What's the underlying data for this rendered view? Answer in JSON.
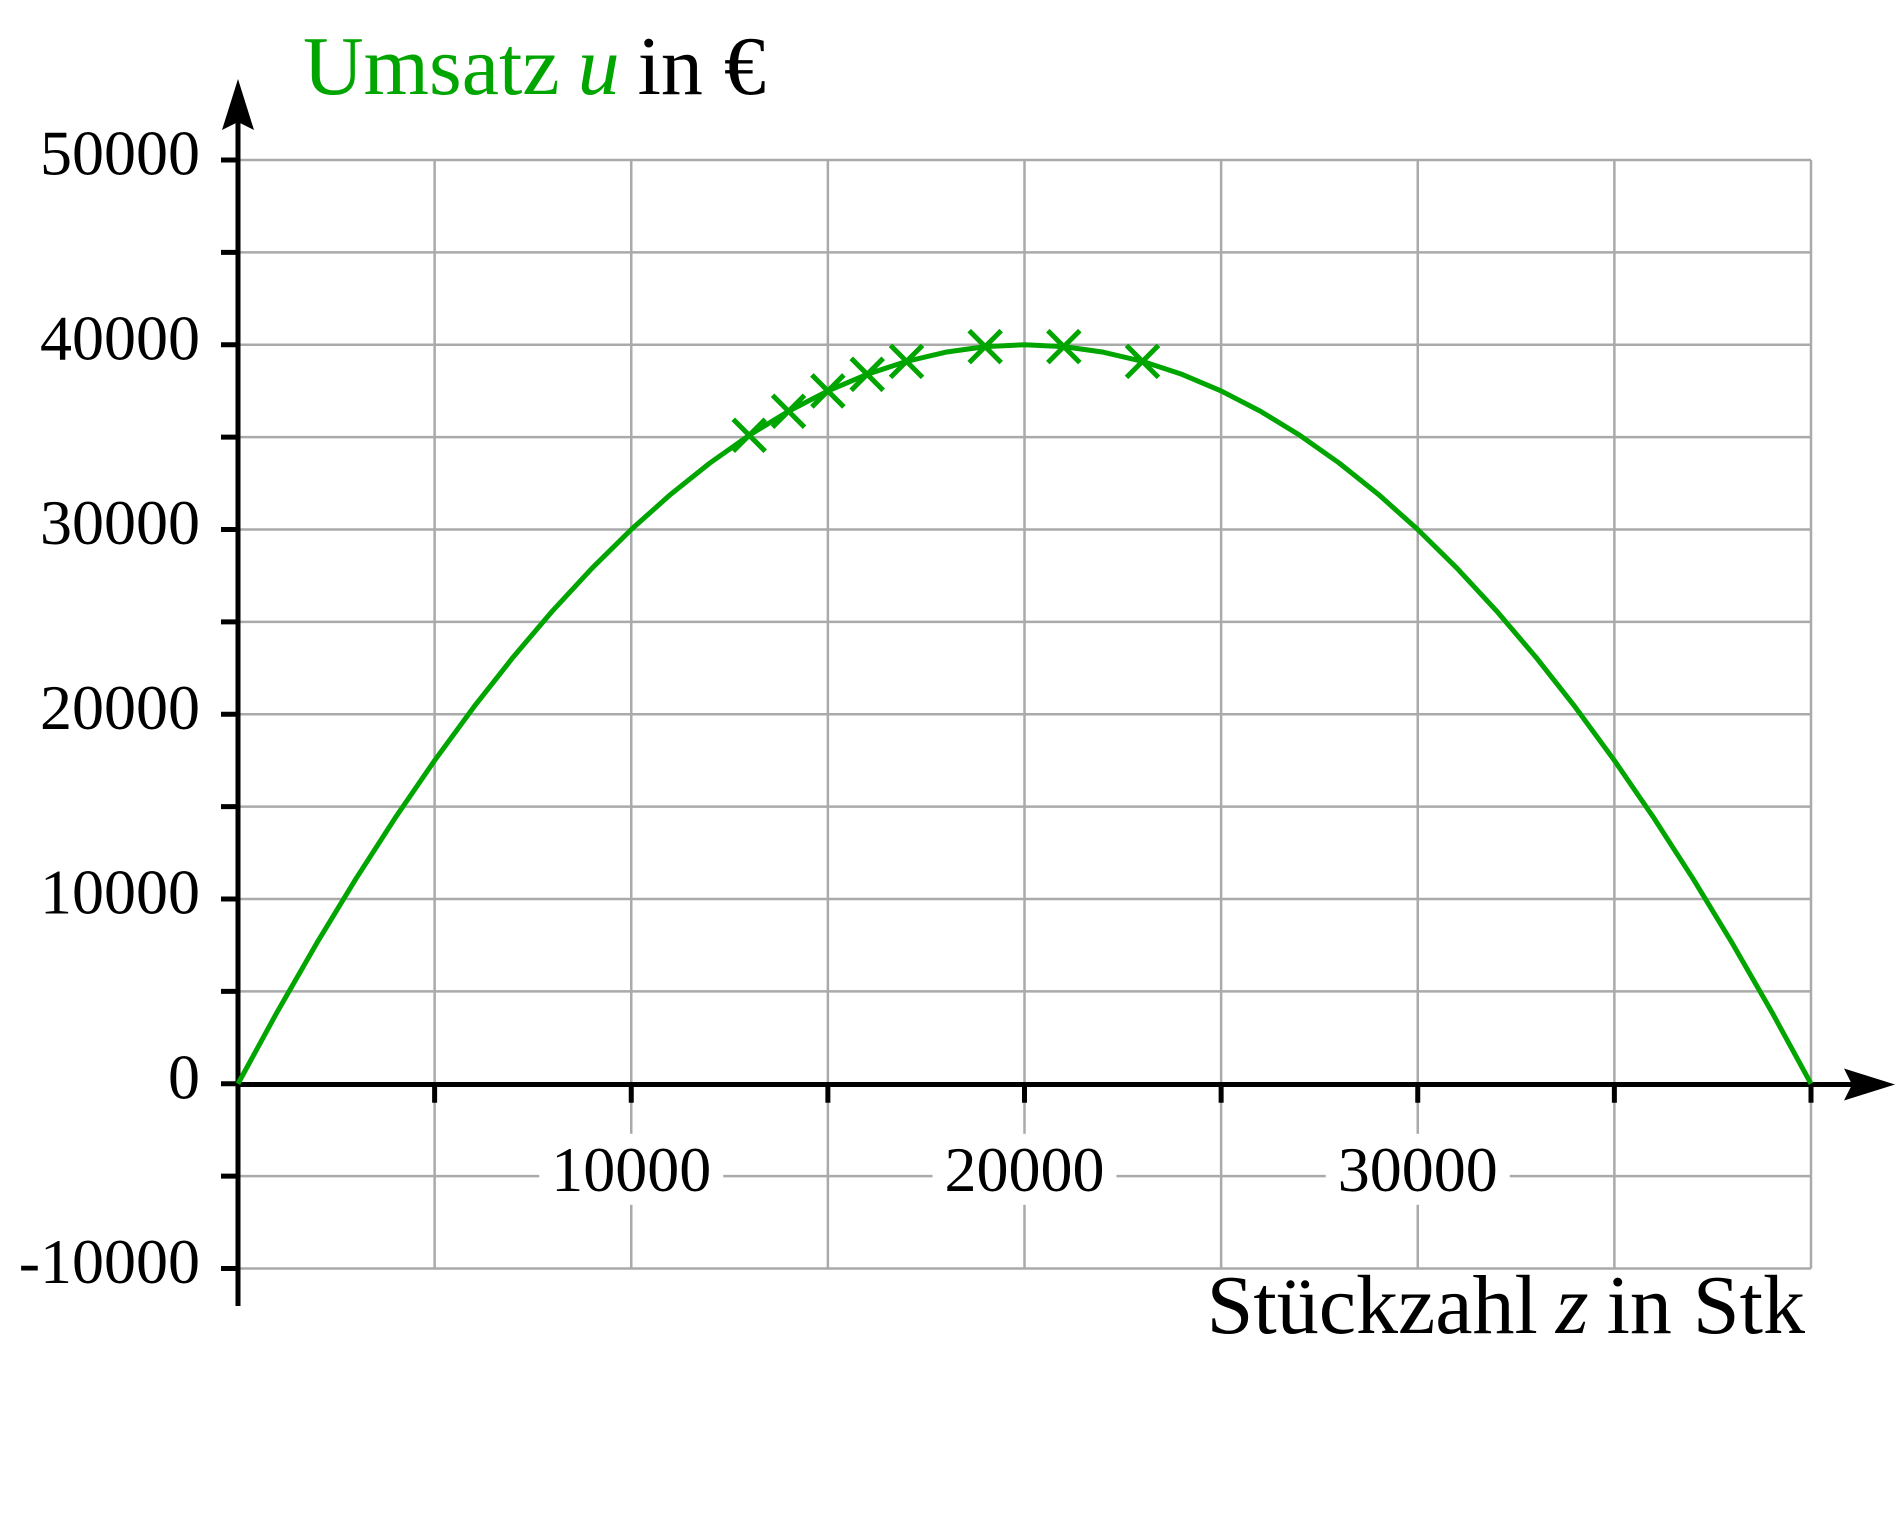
{
  "chart_data": {
    "type": "line",
    "ylabel": {
      "name": "Umsatz",
      "symbol": "u",
      "unit": "in €"
    },
    "xlabel": {
      "name": "Stückzahl",
      "symbol": "z",
      "unit": "in Stk"
    },
    "xlim": [
      0,
      40000
    ],
    "ylim": [
      -10000,
      50000
    ],
    "xticks": [
      10000,
      20000,
      30000
    ],
    "xminor_ticks": [
      5000,
      15000,
      25000,
      35000,
      40000
    ],
    "yticks": [
      -10000,
      0,
      10000,
      20000,
      30000,
      40000,
      50000
    ],
    "yminor_ticks": [
      -5000,
      5000,
      15000,
      25000,
      35000,
      45000
    ],
    "grid": true,
    "series": [
      {
        "type": "line",
        "color": "#00a500",
        "x": [
          0,
          1000,
          2000,
          3000,
          4000,
          5000,
          6000,
          7000,
          8000,
          9000,
          10000,
          11000,
          12000,
          13000,
          14000,
          15000,
          16000,
          17000,
          18000,
          19000,
          20000,
          21000,
          22000,
          23000,
          24000,
          25000,
          26000,
          27000,
          28000,
          29000,
          30000,
          31000,
          32000,
          33000,
          34000,
          35000,
          36000,
          37000,
          38000,
          39000,
          40000
        ],
        "values": [
          0,
          3900,
          7600,
          11100,
          14400,
          17500,
          20400,
          23100,
          25600,
          27900,
          30000,
          31900,
          33600,
          35100,
          36400,
          37500,
          38400,
          39100,
          39600,
          39900,
          40000,
          39900,
          39600,
          39100,
          38400,
          37500,
          36400,
          35100,
          33600,
          31900,
          30000,
          27900,
          25600,
          23100,
          20400,
          17500,
          14400,
          11100,
          7600,
          3900,
          0
        ]
      },
      {
        "type": "scatter",
        "color": "#00a500",
        "x": [
          13000,
          14000,
          15000,
          16000,
          17000,
          19000,
          21000,
          23000
        ],
        "values": [
          35100,
          36400,
          37500,
          38400,
          39100,
          39900,
          39900,
          39100
        ]
      }
    ]
  }
}
